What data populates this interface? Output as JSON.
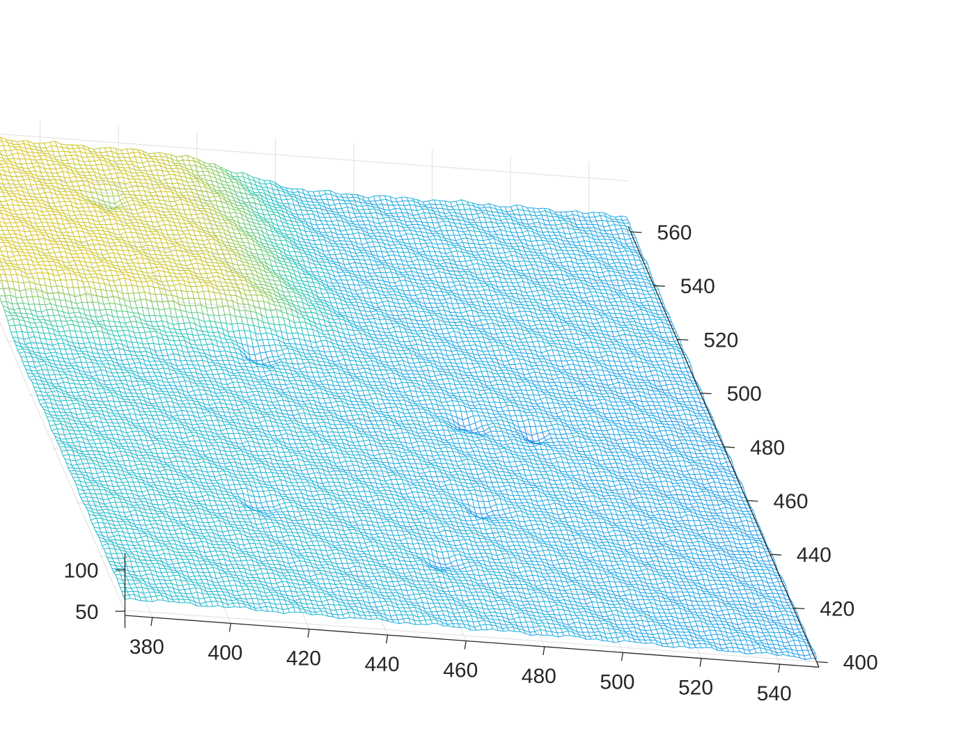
{
  "chart_data": {
    "type": "surface",
    "style": "mesh",
    "colormap": "parula",
    "colors": {
      "low": "#1f8fe6",
      "mid": "#1fc4b8",
      "high": "#d6c21a",
      "axis": "#262626",
      "grid": "#dedede"
    },
    "x_axis": {
      "range": [
        373,
        550
      ],
      "ticks": [
        380,
        400,
        420,
        440,
        460,
        480,
        500,
        520,
        540
      ],
      "tick_labels": [
        "380",
        "400",
        "420",
        "440",
        "460",
        "480",
        "500",
        "520",
        "540"
      ]
    },
    "y_axis": {
      "range": [
        398,
        562
      ],
      "ticks": [
        400,
        420,
        440,
        460,
        480,
        500,
        520,
        540,
        560
      ],
      "tick_labels": [
        "400",
        "420",
        "440",
        "460",
        "480",
        "500",
        "520",
        "540",
        "560"
      ]
    },
    "z_axis": {
      "range": [
        45,
        120
      ],
      "ticks": [
        50,
        100
      ],
      "tick_labels": [
        "50",
        "100"
      ]
    },
    "surface": {
      "z_base": 60,
      "z_high_plateau": 90,
      "z_low_basin": 72,
      "plateau_region": "upper-left",
      "basin_region": "upper-right",
      "notable_dips": [
        {
          "x": 412,
          "y": 543,
          "depth": 10
        },
        {
          "x": 436,
          "y": 497,
          "depth": 12
        },
        {
          "x": 484,
          "y": 478,
          "depth": 10
        },
        {
          "x": 500,
          "y": 476,
          "depth": 11
        },
        {
          "x": 478,
          "y": 445,
          "depth": 9
        },
        {
          "x": 420,
          "y": 440,
          "depth": 8
        },
        {
          "x": 462,
          "y": 424,
          "depth": 9
        }
      ]
    },
    "grid": true,
    "legend": "none"
  }
}
